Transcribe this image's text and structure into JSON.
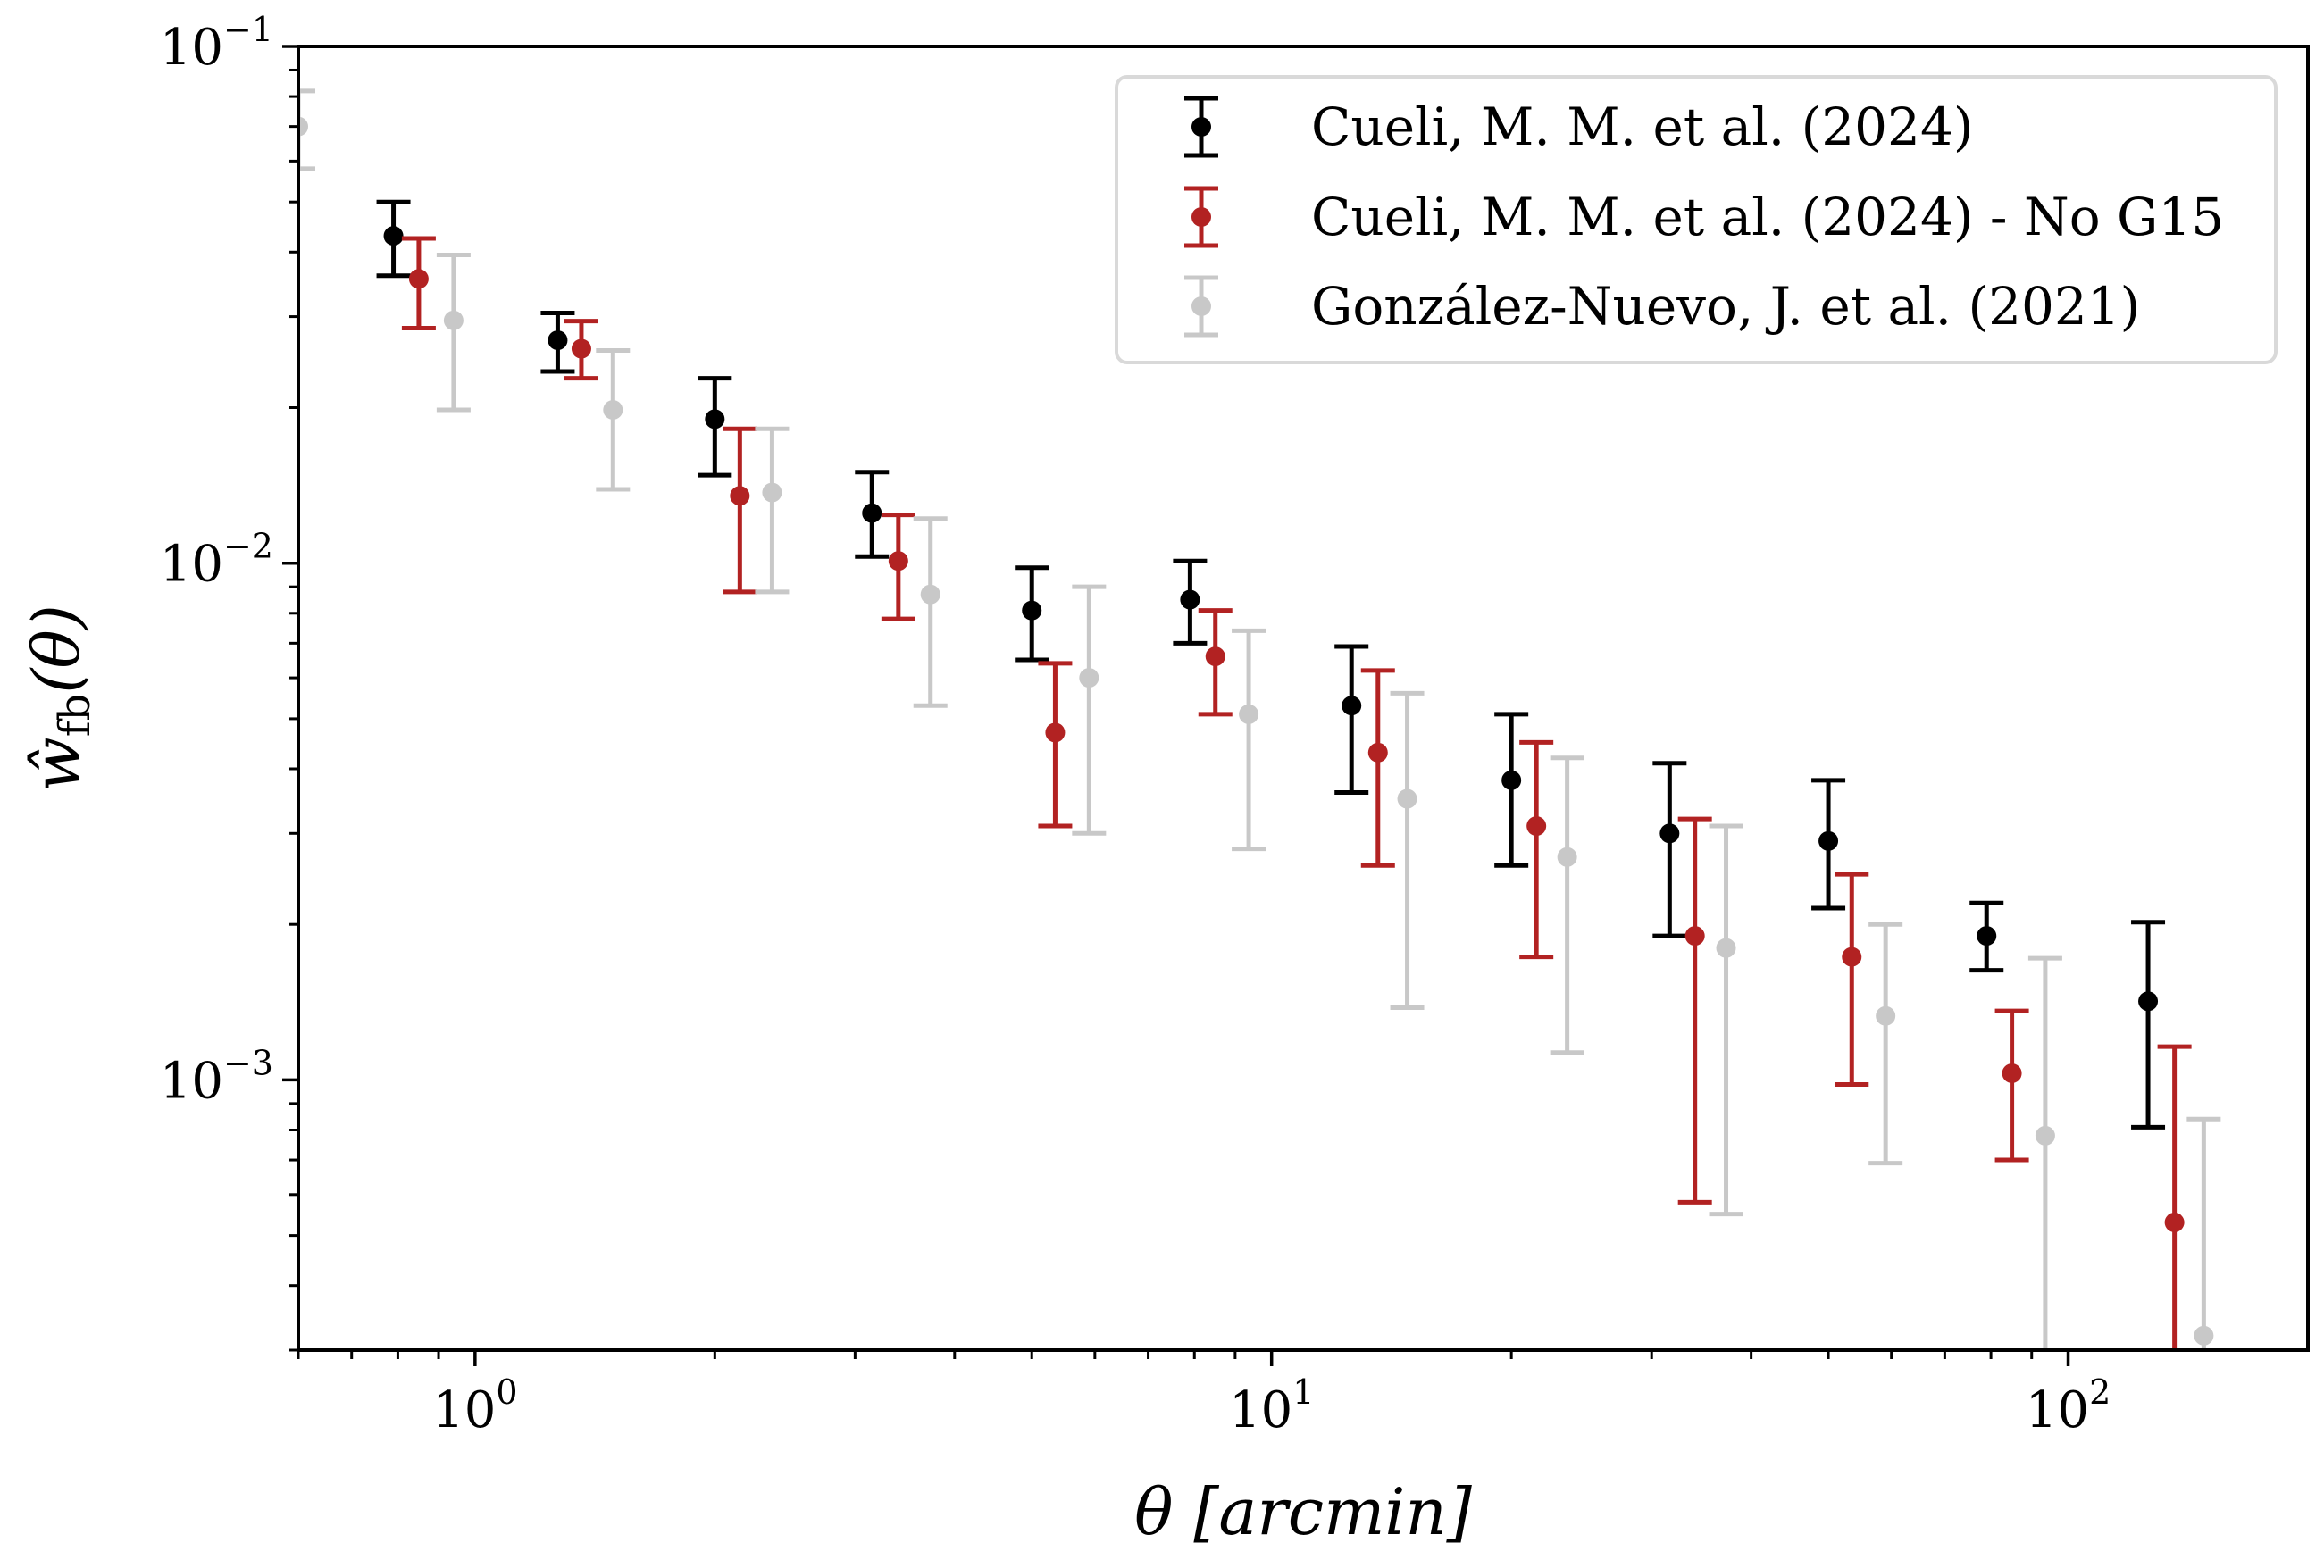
{
  "chart_data": {
    "type": "scatter",
    "subtype": "errorbar",
    "title": "",
    "xlabel": "θ [arcmin]",
    "ylabel_base": "ŵ",
    "ylabel_sub": "fb",
    "ylabel_arg": "(θ)",
    "xscale": "log",
    "yscale": "log",
    "xlim": [
      0.6,
      200
    ],
    "ylim": [
      0.0003,
      0.1
    ],
    "x_ticks": [
      {
        "value": 1,
        "base": "10",
        "exp": "0"
      },
      {
        "value": 10,
        "base": "10",
        "exp": "1"
      },
      {
        "value": 100,
        "base": "10",
        "exp": "2"
      }
    ],
    "y_ticks": [
      {
        "value": 0.001,
        "base": "10",
        "exp": "−3"
      },
      {
        "value": 0.01,
        "base": "10",
        "exp": "−2"
      },
      {
        "value": 0.1,
        "base": "10",
        "exp": "−1"
      }
    ],
    "legend_position": "top-right",
    "series": [
      {
        "name": "Cueli, M. M. et al. (2024)",
        "color": "#000000",
        "x": [
          0.79,
          1.27,
          2.0,
          3.15,
          5.0,
          7.9,
          12.6,
          20.0,
          31.6,
          50.0,
          79.0,
          126.0
        ],
        "y": [
          0.043,
          0.027,
          0.019,
          0.0125,
          0.0081,
          0.0085,
          0.0053,
          0.0038,
          0.003,
          0.0029,
          0.0019,
          0.00142
        ],
        "err_low": [
          0.036,
          0.0235,
          0.0148,
          0.0103,
          0.0065,
          0.007,
          0.0036,
          0.0026,
          0.0019,
          0.00215,
          0.00163,
          0.00081
        ],
        "err_high": [
          0.05,
          0.0305,
          0.0228,
          0.015,
          0.0098,
          0.0101,
          0.0069,
          0.0051,
          0.0041,
          0.0038,
          0.0022,
          0.00202
        ]
      },
      {
        "name": "Cueli, M. M. et al. (2024) - No G15",
        "color": "#b22222",
        "x": [
          0.85,
          1.36,
          2.15,
          3.4,
          5.35,
          8.5,
          13.6,
          21.5,
          34.0,
          53.5,
          85.0,
          136.0
        ],
        "y": [
          0.0355,
          0.026,
          0.0135,
          0.0101,
          0.0047,
          0.0066,
          0.0043,
          0.0031,
          0.0019,
          0.00173,
          0.00103,
          0.00053
        ],
        "err_low": [
          0.0285,
          0.0228,
          0.0088,
          0.0078,
          0.0031,
          0.0051,
          0.0026,
          0.00173,
          0.00058,
          0.00098,
          0.0007,
          0.0002
        ],
        "err_high": [
          0.0425,
          0.0294,
          0.0182,
          0.0124,
          0.0064,
          0.0081,
          0.0062,
          0.0045,
          0.0032,
          0.0025,
          0.00136,
          0.00116
        ]
      },
      {
        "name": "González-Nuevo, J. et al. (2021)",
        "color": "#c8c8c8",
        "x": [
          0.6,
          0.94,
          1.49,
          2.36,
          3.73,
          5.9,
          9.36,
          14.8,
          23.5,
          37.2,
          59.0,
          93.6,
          148.0
        ],
        "y": [
          0.07,
          0.0295,
          0.0198,
          0.0137,
          0.0087,
          0.006,
          0.0051,
          0.0035,
          0.0027,
          0.0018,
          0.00133,
          0.00078,
          0.00032
        ],
        "err_low": [
          0.058,
          0.0198,
          0.0139,
          0.0088,
          0.0053,
          0.003,
          0.0028,
          0.00138,
          0.00113,
          0.00055,
          0.00069,
          0.00025,
          0.0002
        ],
        "err_high": [
          0.082,
          0.0395,
          0.0258,
          0.0182,
          0.0122,
          0.009,
          0.0074,
          0.0056,
          0.0042,
          0.0031,
          0.002,
          0.00172,
          0.00084
        ]
      }
    ]
  }
}
